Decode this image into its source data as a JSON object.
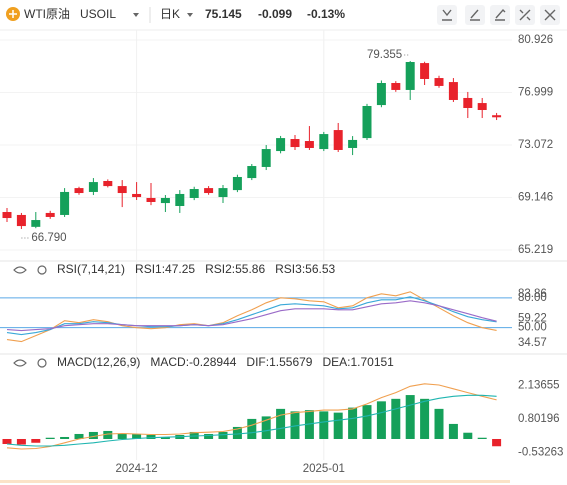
{
  "header": {
    "symbol": "WTI原油",
    "code": "USOIL",
    "period": "日K",
    "price": 75.145,
    "change": -0.099,
    "change_pct": "-0.13%",
    "symbol_color": "#f0a020",
    "price_color": "#1a9f5d"
  },
  "chart_data": [
    {
      "type": "candlestick",
      "categories": [
        null,
        null,
        null,
        null,
        null,
        null,
        null,
        null,
        null,
        "2024-12",
        null,
        null,
        null,
        null,
        null,
        null,
        null,
        null,
        null,
        null,
        null,
        null,
        "2025-01",
        null,
        null,
        null,
        null,
        null,
        null,
        null,
        null,
        null,
        null,
        null,
        null
      ],
      "open": [
        68.06,
        67.84,
        66.95,
        67.99,
        67.84,
        69.85,
        69.56,
        70.38,
        70.0,
        69.41,
        69.11,
        68.73,
        68.51,
        69.11,
        69.85,
        69.18,
        69.7,
        70.6,
        71.43,
        72.62,
        73.52,
        73.37,
        72.77,
        74.19,
        72.85,
        73.59,
        76.06,
        77.71,
        77.19,
        79.2,
        78.08,
        77.78,
        76.59,
        76.21,
        75.3
      ],
      "high": [
        68.36,
        67.99,
        68.06,
        68.15,
        69.85,
        69.95,
        70.6,
        70.5,
        70.45,
        70.3,
        70.23,
        69.33,
        69.7,
        69.95,
        70.0,
        70.08,
        70.85,
        71.65,
        73.07,
        73.75,
        73.82,
        74.49,
        74.05,
        74.72,
        73.74,
        76.15,
        77.9,
        77.85,
        79.355,
        79.3,
        78.25,
        78.08,
        77.04,
        76.59,
        75.47
      ],
      "low": [
        67.31,
        66.79,
        66.85,
        67.55,
        67.69,
        69.35,
        69.33,
        69.9,
        68.43,
        68.96,
        68.58,
        68.06,
        67.99,
        68.95,
        69.35,
        68.73,
        69.55,
        70.45,
        71.2,
        72.45,
        72.7,
        72.7,
        72.62,
        72.55,
        72.32,
        73.45,
        75.9,
        77.05,
        76.44,
        77.56,
        77.35,
        76.29,
        75.09,
        75.09,
        74.94
      ],
      "close": [
        67.61,
        67.01,
        67.46,
        67.69,
        69.56,
        69.48,
        70.3,
        70.0,
        69.48,
        69.18,
        68.81,
        69.11,
        69.41,
        69.78,
        69.48,
        69.85,
        70.68,
        71.5,
        72.77,
        73.59,
        72.92,
        72.85,
        73.89,
        72.7,
        73.45,
        75.99,
        77.71,
        77.19,
        79.28,
        78.01,
        77.49,
        76.44,
        75.84,
        75.69,
        75.145
      ],
      "up_color": "#15a05a",
      "down_color": "#e8222b",
      "ylim": [
        64.471,
        81.674
      ],
      "yticks": [
        80.926,
        76.999,
        73.072,
        69.146,
        65.219
      ],
      "high_label": "79.355",
      "low_label": "66.790"
    },
    {
      "type": "line",
      "title": "RSI(7,14,21)",
      "series": [
        {
          "name": "RSI1:47.25",
          "color": "#f0a050",
          "values": [
            38,
            36,
            42,
            48,
            57,
            55,
            58,
            56,
            52,
            50,
            49,
            50,
            53,
            54,
            52,
            55,
            62,
            68,
            75,
            80,
            79,
            77,
            76,
            70,
            72,
            80,
            84,
            82,
            86,
            78,
            70,
            62,
            55,
            50,
            47.25
          ]
        },
        {
          "name": "RSI2:55.86",
          "color": "#3aa8d8",
          "values": [
            45,
            43,
            45,
            48,
            54,
            54,
            56,
            55,
            53,
            52,
            51,
            51,
            52,
            53,
            52,
            54,
            58,
            63,
            68,
            73,
            74,
            73,
            72,
            69,
            70,
            75,
            78,
            78,
            81,
            77,
            72,
            66,
            61,
            58,
            55.86
          ]
        },
        {
          "name": "RSI3:56.53",
          "color": "#9a6bc8",
          "values": [
            48,
            47,
            48,
            49,
            52,
            53,
            54,
            54,
            53,
            52,
            52,
            52,
            52,
            53,
            52,
            53,
            56,
            59,
            63,
            67,
            69,
            69,
            69,
            68,
            68,
            71,
            74,
            75,
            77,
            75,
            72,
            68,
            64,
            60,
            56.53
          ]
        }
      ],
      "ylim": [
        27.54,
        95.9
      ],
      "yticks": [
        34.57,
        59.22,
        83.86
      ],
      "hlines": [
        {
          "value": 80,
          "label": "80.00"
        },
        {
          "value": 50,
          "label": "50.00"
        }
      ],
      "hline_color": "#5aa9e6"
    },
    {
      "type": "macd",
      "title": "MACD(12,26,9)",
      "histogram": {
        "name": "MACD:-0.28944",
        "color": "#9b59b6",
        "up_color": "#15a05a",
        "down_color": "#e8222b",
        "values": [
          -0.2,
          -0.22,
          -0.15,
          0.05,
          0.08,
          0.2,
          0.28,
          0.32,
          0.2,
          0.2,
          0.16,
          0.08,
          0.16,
          0.28,
          0.2,
          0.28,
          0.48,
          0.8,
          0.9,
          1.2,
          1.1,
          1.15,
          1.1,
          1.05,
          1.25,
          1.35,
          1.5,
          1.6,
          1.75,
          1.6,
          1.2,
          0.6,
          0.25,
          0.05,
          -0.28944
        ]
      },
      "series": [
        {
          "name": "DIF:1.55679",
          "color": "#f0a050",
          "values": [
            -0.35,
            -0.4,
            -0.38,
            -0.3,
            -0.15,
            0,
            0.1,
            0.2,
            0.22,
            0.2,
            0.18,
            0.18,
            0.2,
            0.25,
            0.27,
            0.3,
            0.4,
            0.55,
            0.75,
            0.95,
            1.05,
            1.1,
            1.15,
            1.15,
            1.2,
            1.4,
            1.65,
            1.85,
            2.1,
            2.2,
            2.15,
            2.0,
            1.85,
            1.7,
            1.55679
          ]
        },
        {
          "name": "DEA:1.70151",
          "color": "#1fb5b0",
          "values": [
            -0.2,
            -0.25,
            -0.28,
            -0.28,
            -0.25,
            -0.2,
            -0.15,
            -0.08,
            -0.02,
            0.02,
            0.05,
            0.07,
            0.09,
            0.12,
            0.14,
            0.17,
            0.2,
            0.25,
            0.33,
            0.42,
            0.52,
            0.6,
            0.68,
            0.75,
            0.82,
            0.92,
            1.05,
            1.2,
            1.35,
            1.5,
            1.62,
            1.7,
            1.74,
            1.74,
            1.70151
          ]
        }
      ],
      "ylim": [
        -0.837,
        2.669
      ],
      "yticks": [
        2.13655,
        0.80196,
        -0.53263
      ]
    }
  ]
}
